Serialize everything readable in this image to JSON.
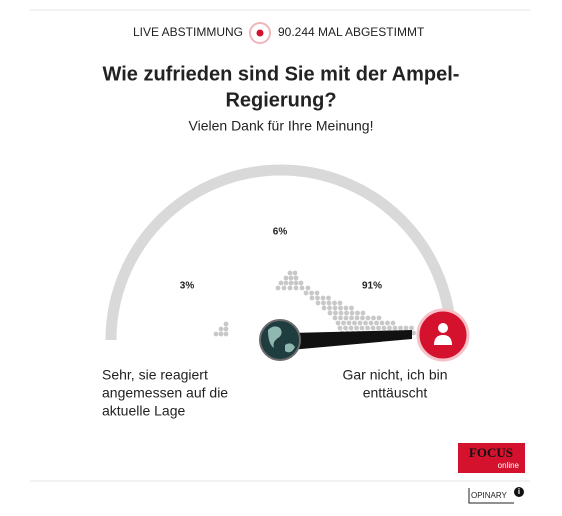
{
  "header": {
    "live_label": "LIVE ABSTIMMUNG",
    "count": "90.244 MAL ABGESTIMMT"
  },
  "question": [
    "Wie zufrieden sind Sie mit der Ampel-",
    "Regierung?"
  ],
  "thanks": "Vielen Dank für Ihre Meinung!",
  "results": [
    "3%",
    "6%",
    "91%"
  ],
  "left_label": [
    "Sehr, sie reagiert",
    "angemessen auf die",
    "aktuelle Lage"
  ],
  "right_label": [
    "Gar nicht, ich bin",
    "enttäuscht"
  ],
  "brand": {
    "name": "FOCUS",
    "sub": "online"
  },
  "footer": "OPINARY"
}
